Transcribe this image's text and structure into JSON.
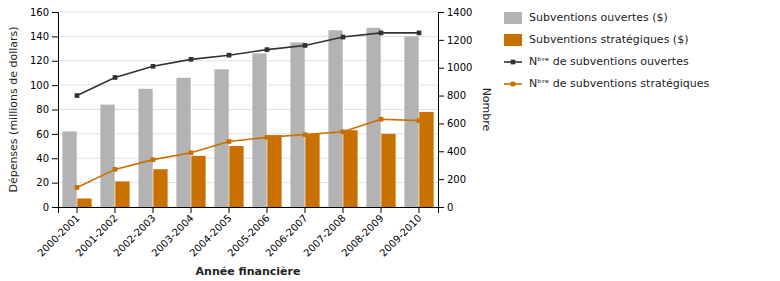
{
  "chart_data": {
    "type": "bar",
    "xlabel": "Année financière",
    "ylabel": "Dépenses (millions de dollars)",
    "y2label": "Nombre",
    "categories": [
      "2000-2001",
      "2001-2002",
      "2002-2003",
      "2003-2004",
      "2004-2005",
      "2005-2006",
      "2006-2007",
      "2007-2008",
      "2008-2009",
      "2009-2010"
    ],
    "series": [
      {
        "name": "Subventions ouvertes ($)",
        "type": "bar",
        "color": "#b3b3b3",
        "values": [
          62,
          84,
          97,
          106,
          113,
          126,
          135,
          145,
          147,
          140
        ]
      },
      {
        "name": "Subventions stratégiques ($)",
        "type": "bar",
        "color": "#c87000",
        "values": [
          7,
          21,
          31,
          42,
          50,
          59,
          60,
          63,
          60,
          78
        ]
      },
      {
        "name": "Nᵇʳᵉ de subventions ouvertes",
        "type": "line",
        "marker": "square",
        "axis": "y2",
        "color": "#333333",
        "values": [
          800,
          930,
          1010,
          1060,
          1090,
          1130,
          1160,
          1220,
          1250,
          1250
        ]
      },
      {
        "name": "Nᵇʳᵉ de subventions stratégiques",
        "type": "line",
        "marker": "square",
        "axis": "y2",
        "color": "#c87000",
        "values": [
          140,
          270,
          340,
          390,
          470,
          500,
          520,
          540,
          630,
          620
        ]
      }
    ],
    "ylim": [
      0,
      160
    ],
    "yticks": [
      0,
      20,
      40,
      60,
      80,
      100,
      120,
      140,
      160
    ],
    "y2lim": [
      0,
      1400
    ],
    "y2ticks": [
      0,
      200,
      400,
      600,
      800,
      1000,
      1200,
      1400
    ],
    "grid": true,
    "legend": "right"
  }
}
